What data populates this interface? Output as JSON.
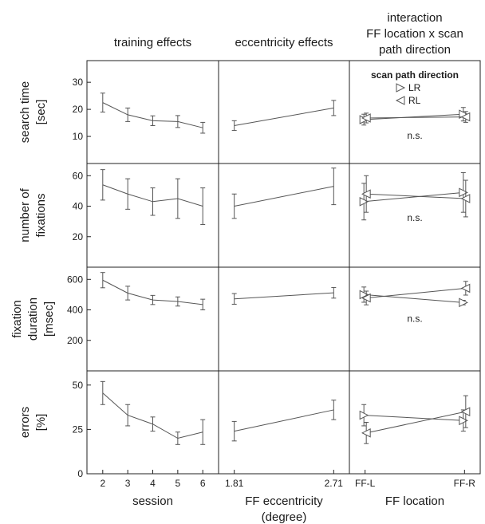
{
  "chart_data": {
    "type": "line",
    "column_titles": [
      [
        "training effects"
      ],
      [
        "eccentricity effects"
      ],
      [
        "interaction",
        "FF location x scan",
        "path direction"
      ]
    ],
    "x_axes": [
      {
        "label": [
          "session"
        ],
        "categories": [
          "2",
          "3",
          "4",
          "5",
          "6"
        ]
      },
      {
        "label": [
          "FF eccentricity",
          "(degree)"
        ],
        "categories": [
          "1.81",
          "2.71"
        ]
      },
      {
        "label": [
          "FF location"
        ],
        "categories": [
          "FF-L",
          "FF-R"
        ]
      }
    ],
    "legend": {
      "title": "scan path direction",
      "placement": "top-right",
      "items": [
        {
          "name": "LR",
          "marker": "triangle-right"
        },
        {
          "name": "RL",
          "marker": "triangle-left"
        }
      ]
    },
    "rows": [
      {
        "label": [
          "search time",
          "[sec]"
        ],
        "ylim": [
          0,
          38
        ],
        "yticks": [
          10,
          20,
          30
        ],
        "training": {
          "values": [
            22.5,
            18,
            15.8,
            15.5,
            13.2
          ],
          "errors": [
            3.5,
            2.5,
            1.8,
            2.2,
            2.0
          ]
        },
        "eccentricity": {
          "values": [
            14,
            20.5
          ],
          "errors": [
            1.8,
            2.8
          ]
        },
        "interaction": {
          "series": [
            {
              "name": "LR",
              "values": [
                16.2,
                18.2
              ],
              "errors": [
                2.0,
                2.5
              ]
            },
            {
              "name": "RL",
              "values": [
                16.8,
                17.2
              ],
              "errors": [
                1.8,
                2.0
              ]
            }
          ],
          "annotation": "n.s."
        }
      },
      {
        "label": [
          "number of",
          "fixations"
        ],
        "ylim": [
          0,
          68
        ],
        "yticks": [
          20,
          40,
          60
        ],
        "training": {
          "values": [
            54,
            48,
            43,
            45,
            40
          ],
          "errors": [
            10,
            10,
            9,
            13,
            12
          ]
        },
        "eccentricity": {
          "values": [
            40,
            53
          ],
          "errors": [
            8,
            12
          ]
        },
        "interaction": {
          "series": [
            {
              "name": "LR",
              "values": [
                43,
                49
              ],
              "errors": [
                12,
                13
              ]
            },
            {
              "name": "RL",
              "values": [
                48,
                45
              ],
              "errors": [
                12,
                12
              ]
            }
          ],
          "annotation": "n.s."
        }
      },
      {
        "label": [
          "fixation",
          "duration",
          "[msec]"
        ],
        "ylim": [
          0,
          680
        ],
        "yticks": [
          200,
          400,
          600
        ],
        "training": {
          "values": [
            595,
            510,
            465,
            455,
            435
          ],
          "errors": [
            50,
            45,
            30,
            30,
            35
          ]
        },
        "eccentricity": {
          "values": [
            472,
            512
          ],
          "errors": [
            35,
            35
          ]
        },
        "interaction": {
          "series": [
            {
              "name": "LR",
              "values": [
                500,
                448
              ],
              "errors": [
                50,
                15
              ]
            },
            {
              "name": "RL",
              "values": [
                478,
                542
              ],
              "errors": [
                45,
                45
              ]
            }
          ],
          "annotation": "n.s."
        }
      },
      {
        "label": [
          "errors",
          "[%]"
        ],
        "ylim": [
          0,
          58
        ],
        "yticks": [
          0,
          25,
          50
        ],
        "training": {
          "values": [
            45.5,
            33,
            28,
            20,
            23.5
          ],
          "errors": [
            6.5,
            6,
            4,
            3.5,
            7
          ]
        },
        "eccentricity": {
          "values": [
            24,
            36
          ],
          "errors": [
            5.5,
            5.5
          ]
        },
        "interaction": {
          "series": [
            {
              "name": "LR",
              "values": [
                33,
                30
              ],
              "errors": [
                6,
                6
              ]
            },
            {
              "name": "RL",
              "values": [
                23,
                35
              ],
              "errors": [
                6,
                9
              ]
            }
          ],
          "annotation": null
        }
      }
    ]
  }
}
